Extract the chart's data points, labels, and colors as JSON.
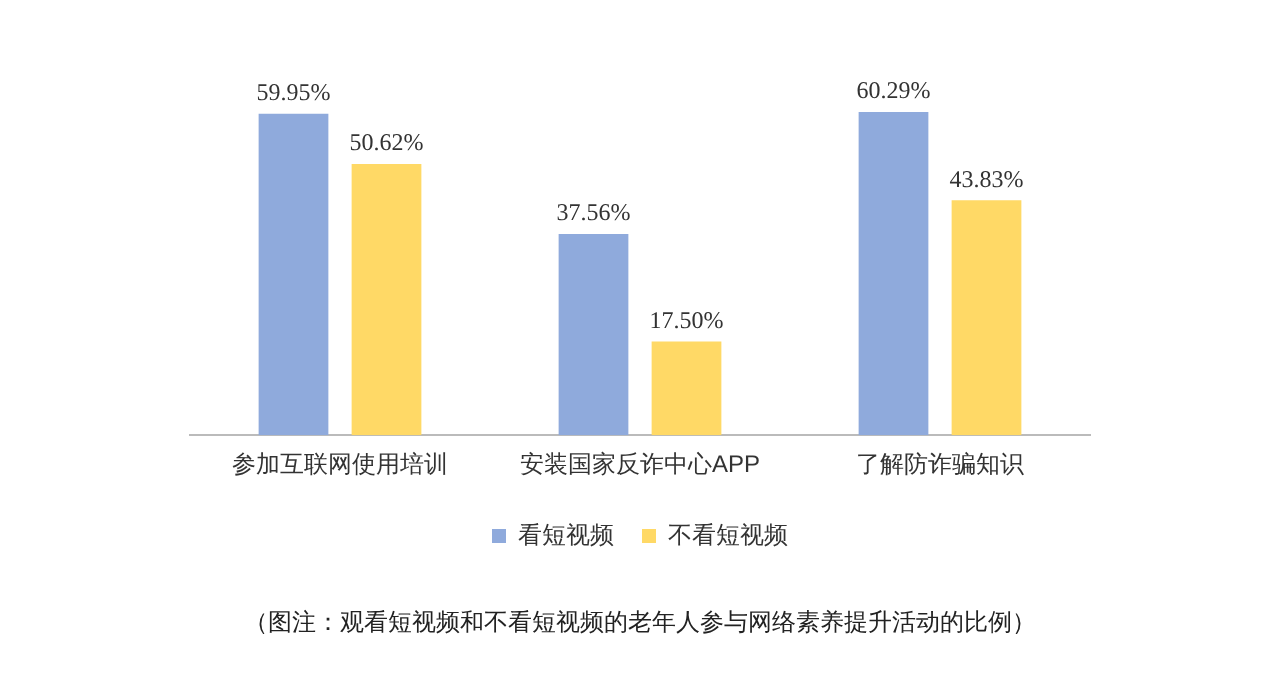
{
  "chart_data": {
    "type": "bar",
    "categories": [
      "参加互联网使用培训",
      "安装国家反诈中心APP",
      "了解防诈骗知识"
    ],
    "series": [
      {
        "name": "看短视频",
        "color": "#8faadc",
        "values": [
          59.95,
          37.56,
          60.29
        ],
        "value_labels": [
          "59.95%",
          "37.56%",
          "60.29%"
        ]
      },
      {
        "name": "不看短视频",
        "color": "#ffd966",
        "values": [
          50.62,
          17.5,
          43.83
        ],
        "value_labels": [
          "50.62%",
          "17.50%",
          "43.83%"
        ]
      }
    ],
    "grid": false,
    "legend": "bottom",
    "annotations": [
      "（图注：观看短视频和不看短视频的老年人参与网络素养提升活动的比例）"
    ]
  }
}
